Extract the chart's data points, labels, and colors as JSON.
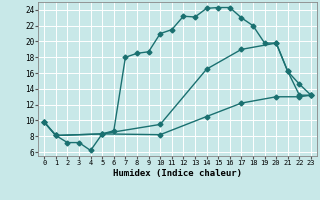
{
  "title": "",
  "xlabel": "Humidex (Indice chaleur)",
  "bg_color": "#c8e8e8",
  "grid_color": "#ffffff",
  "line_color": "#1a7070",
  "xlim": [
    -0.5,
    23.5
  ],
  "ylim": [
    5.5,
    25.0
  ],
  "xticks": [
    0,
    1,
    2,
    3,
    4,
    5,
    6,
    7,
    8,
    9,
    10,
    11,
    12,
    13,
    14,
    15,
    16,
    17,
    18,
    19,
    20,
    21,
    22,
    23
  ],
  "yticks": [
    6,
    8,
    10,
    12,
    14,
    16,
    18,
    20,
    22,
    24
  ],
  "line1_x": [
    0,
    1,
    2,
    3,
    4,
    5,
    6,
    7,
    8,
    9,
    10,
    11,
    12,
    13,
    14,
    15,
    16,
    17,
    18,
    19,
    20,
    21,
    22,
    23
  ],
  "line1_y": [
    9.8,
    8.1,
    7.2,
    7.2,
    6.2,
    8.3,
    8.7,
    18.0,
    18.5,
    18.7,
    21.0,
    21.5,
    23.2,
    23.1,
    24.2,
    24.3,
    24.3,
    23.0,
    22.0,
    19.8,
    19.8,
    16.2,
    14.6,
    13.2
  ],
  "line2_x": [
    0,
    1,
    5,
    10,
    14,
    17,
    20,
    21,
    22,
    23
  ],
  "line2_y": [
    9.8,
    8.1,
    8.3,
    9.5,
    16.5,
    19.0,
    19.8,
    16.2,
    13.2,
    13.2
  ],
  "line3_x": [
    0,
    1,
    5,
    10,
    14,
    17,
    20,
    22,
    23
  ],
  "line3_y": [
    9.8,
    8.1,
    8.3,
    8.2,
    10.5,
    12.2,
    13.0,
    13.0,
    13.2
  ],
  "markersize": 2.5,
  "linewidth": 1.0
}
